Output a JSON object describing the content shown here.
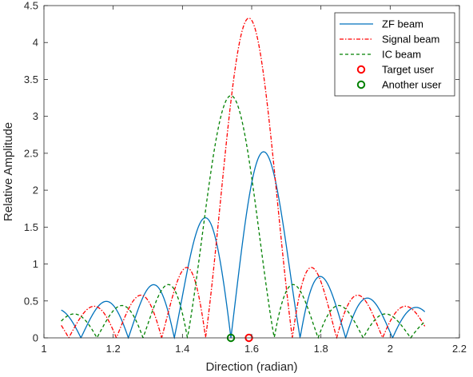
{
  "chart_data": {
    "type": "line",
    "title": "",
    "xlabel": "Direction (radian)",
    "ylabel": "Relative Amplitude",
    "xlim": [
      1,
      2.2
    ],
    "ylim": [
      0,
      4.5
    ],
    "xticks": [
      1,
      1.2,
      1.4,
      1.6,
      1.8,
      2,
      2.2
    ],
    "xtick_labels": [
      "1",
      "1.2",
      "1.4",
      "1.6",
      "1.8",
      "2",
      "2.2"
    ],
    "yticks": [
      0,
      0.5,
      1,
      1.5,
      2,
      2.5,
      3,
      3.5,
      4,
      4.5
    ],
    "ytick_labels": [
      "0",
      "0.5",
      "1",
      "1.5",
      "2",
      "2.5",
      "3",
      "3.5",
      "4",
      "4.5"
    ],
    "grid": false,
    "legend_position": "top-right",
    "array_size": 16,
    "series": [
      {
        "name": "ZF beam",
        "kind": "line",
        "style": "solid",
        "color": "#0072BD",
        "peak": 2.52,
        "peak_at": 1.635,
        "zero_at": 1.54
      },
      {
        "name": "Signal beam",
        "kind": "line",
        "style": "dash-dot",
        "color": "#FF0000",
        "peak": 4.33,
        "peak_at": 1.592
      },
      {
        "name": "IC beam",
        "kind": "line",
        "style": "dashed",
        "color": "#008000",
        "peak": 3.28,
        "peak_at": 1.54
      },
      {
        "name": "Target user",
        "kind": "marker",
        "color": "#FF0000",
        "points": [
          {
            "x": 1.592,
            "y": 0
          }
        ]
      },
      {
        "name": "Another user",
        "kind": "marker",
        "color": "#008000",
        "points": [
          {
            "x": 1.54,
            "y": 0
          }
        ]
      }
    ]
  }
}
